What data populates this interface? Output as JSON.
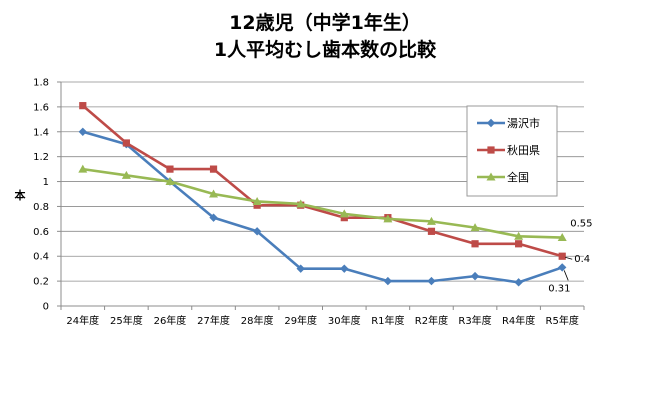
{
  "chart_data": {
    "type": "line",
    "title_line1": "12歳児（中学1年生）",
    "title_line2": "1人平均むし歯本数の比較",
    "ylabel": "本",
    "xlabel": "",
    "ylim": [
      0,
      1.8
    ],
    "yticks": [
      "0",
      "0.2",
      "0.4",
      "0.6",
      "0.8",
      "1",
      "1.2",
      "1.4",
      "1.6",
      "1.8"
    ],
    "categories": [
      "24年度",
      "25年度",
      "26年度",
      "27年度",
      "28年度",
      "29年度",
      "30年度",
      "R1年度",
      "R2年度",
      "R3年度",
      "R4年度",
      "R5年度"
    ],
    "grid": true,
    "legend_position": "right",
    "series": [
      {
        "name": "湯沢市",
        "color": "#4a7ebb",
        "marker": "diamond",
        "values": [
          1.4,
          1.3,
          1.0,
          0.71,
          0.6,
          0.3,
          0.3,
          0.2,
          0.2,
          0.24,
          0.19,
          0.31
        ]
      },
      {
        "name": "秋田県",
        "color": "#be4b48",
        "marker": "square",
        "values": [
          1.61,
          1.31,
          1.1,
          1.1,
          0.81,
          0.81,
          0.71,
          0.71,
          0.6,
          0.5,
          0.5,
          0.4
        ]
      },
      {
        "name": "全国",
        "color": "#98b954",
        "marker": "triangle",
        "values": [
          1.1,
          1.05,
          1.0,
          0.9,
          0.84,
          0.82,
          0.74,
          0.7,
          0.68,
          0.63,
          0.56,
          0.55
        ]
      }
    ],
    "data_labels": [
      {
        "series": 2,
        "index": 11,
        "text": "0.55"
      },
      {
        "series": 1,
        "index": 11,
        "text": "0.4"
      },
      {
        "series": 0,
        "index": 11,
        "text": "0.31"
      }
    ]
  }
}
